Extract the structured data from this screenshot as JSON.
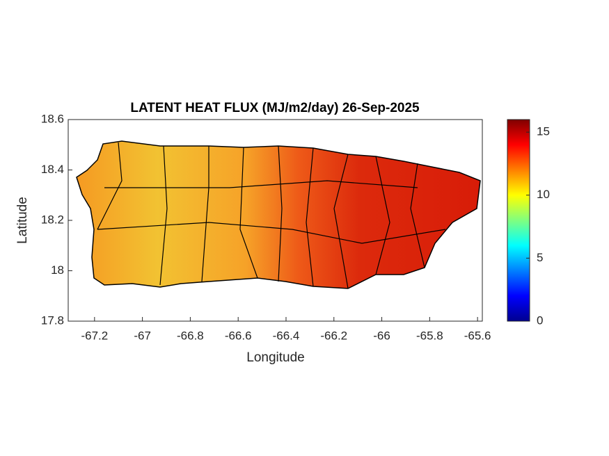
{
  "chart_data": {
    "type": "map",
    "title": "LATENT HEAT FLUX (MJ/m2/day) 26-Sep-2025",
    "x_label": "Longitude",
    "y_label": "Latitude",
    "xlim": [
      -67.31,
      -65.58
    ],
    "ylim": [
      17.8,
      18.6
    ],
    "xticks": [
      -67.2,
      -67,
      -66.8,
      -66.6,
      -66.4,
      -66.2,
      -66,
      -65.8,
      -65.6
    ],
    "yticks": [
      17.8,
      18,
      18.2,
      18.4,
      18.6
    ],
    "colorbar": {
      "clim": [
        0,
        16
      ],
      "ticks": [
        0,
        5,
        10,
        15
      ],
      "colormap": "jet"
    }
  }
}
